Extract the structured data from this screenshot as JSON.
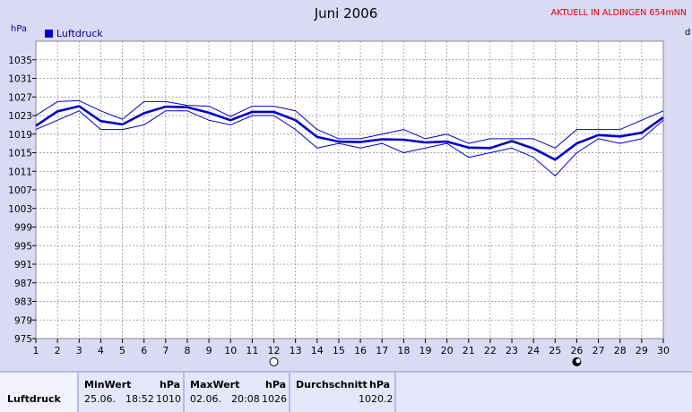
{
  "header": {
    "title": "Juni 2006",
    "live_link": "AKTUELL IN ALDINGEN 654mNN",
    "unit_left": "hPa",
    "unit_right": "d"
  },
  "colors": {
    "line": "#0000cc",
    "grid": "#8a8a8a",
    "plot_bg": "#ffffff",
    "page_bg": "#dadaf5",
    "live_link": "#e00000"
  },
  "chart_data": {
    "type": "line",
    "title": "Juni 2006",
    "ylabel": "hPa",
    "xlim": [
      1,
      30
    ],
    "ylim": [
      975,
      1039
    ],
    "yticks": [
      975,
      979,
      983,
      987,
      991,
      995,
      999,
      1003,
      1007,
      1011,
      1015,
      1019,
      1023,
      1027,
      1031,
      1035
    ],
    "x": [
      1,
      2,
      3,
      4,
      5,
      6,
      7,
      8,
      9,
      10,
      11,
      12,
      13,
      14,
      15,
      16,
      17,
      18,
      19,
      20,
      21,
      22,
      23,
      24,
      25,
      26,
      27,
      28,
      29,
      30
    ],
    "grid": true,
    "legend_position": "top-left",
    "moon_phases": [
      {
        "day": 12,
        "phase": "full-moon-icon"
      },
      {
        "day": 26,
        "phase": "new-moon-icon"
      }
    ],
    "series": [
      {
        "name": "Luftdruck",
        "role": "mean",
        "values": [
          1020.8,
          1023.9,
          1025.0,
          1021.8,
          1021.1,
          1023.5,
          1024.9,
          1024.8,
          1023.6,
          1022.0,
          1023.8,
          1023.8,
          1022.0,
          1018.4,
          1017.4,
          1017.3,
          1017.9,
          1017.8,
          1017.2,
          1017.4,
          1016.1,
          1016.0,
          1017.5,
          1015.9,
          1013.5,
          1017.0,
          1018.8,
          1018.5,
          1019.3,
          1022.6
        ]
      },
      {
        "role": "max",
        "values": [
          1023.0,
          1026.0,
          1026.2,
          1024.0,
          1022.2,
          1026.0,
          1026.0,
          1025.2,
          1025.0,
          1022.8,
          1025.0,
          1025.0,
          1024.0,
          1020.0,
          1018.0,
          1018.0,
          1019.0,
          1020.0,
          1018.0,
          1019.0,
          1017.0,
          1018.0,
          1018.0,
          1018.0,
          1016.0,
          1020.0,
          1020.0,
          1020.0,
          1022.0,
          1024.0
        ]
      },
      {
        "role": "min",
        "values": [
          1020.0,
          1022.0,
          1024.0,
          1020.0,
          1020.0,
          1021.0,
          1024.0,
          1024.0,
          1022.0,
          1021.0,
          1023.0,
          1023.0,
          1020.0,
          1016.0,
          1017.0,
          1016.0,
          1017.0,
          1015.0,
          1016.0,
          1017.0,
          1014.0,
          1015.0,
          1016.0,
          1014.0,
          1010.0,
          1015.0,
          1018.0,
          1017.0,
          1018.0,
          1022.0
        ]
      }
    ]
  },
  "stats": {
    "row_label": "Luftdruck",
    "min_header": "MinWert",
    "min_unit": "hPa",
    "min_date": "25.06.",
    "min_time": "18:52",
    "min_value": "1010",
    "max_header": "MaxWert",
    "max_unit": "hPa",
    "max_date": "02.06.",
    "max_time": "20:08",
    "max_value": "1026",
    "avg_header": "Durchschnitt",
    "avg_unit": "hPa",
    "avg_value": "1020.2"
  }
}
